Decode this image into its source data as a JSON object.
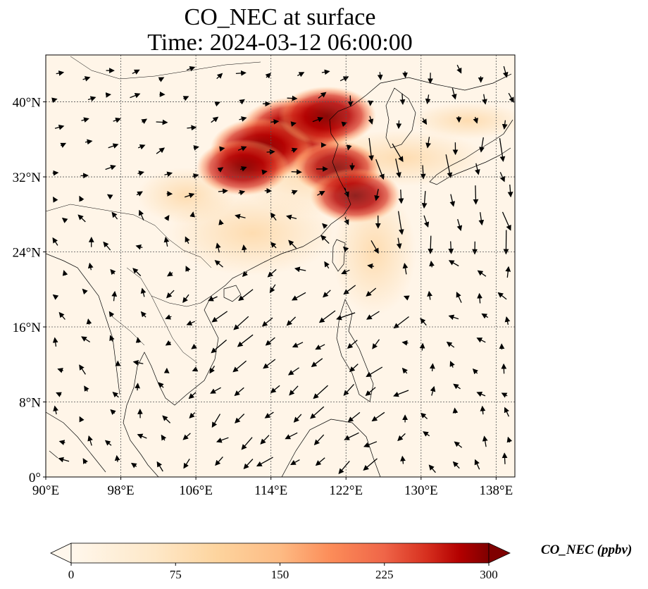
{
  "title": {
    "line1": "CO_NEC at surface",
    "line2": "Time: 2024-03-12 06:00:00"
  },
  "map": {
    "projection": "PlateCarree",
    "lon_range": [
      90,
      140
    ],
    "lat_range": [
      0,
      45
    ],
    "x_ticks": [
      {
        "value": 90,
        "label": "90°E"
      },
      {
        "value": 98,
        "label": "98°E"
      },
      {
        "value": 106,
        "label": "106°E"
      },
      {
        "value": 114,
        "label": "114°E"
      },
      {
        "value": 122,
        "label": "122°E"
      },
      {
        "value": 130,
        "label": "130°E"
      },
      {
        "value": 138,
        "label": "138°E"
      }
    ],
    "y_ticks": [
      {
        "value": 0,
        "label": "0°"
      },
      {
        "value": 8,
        "label": "8°N"
      },
      {
        "value": 16,
        "label": "16°N"
      },
      {
        "value": 24,
        "label": "24°N"
      },
      {
        "value": 32,
        "label": "32°N"
      },
      {
        "value": 40,
        "label": "40°N"
      }
    ],
    "gridlines": "dotted",
    "field": "CO_NEC concentration with surface wind vectors",
    "plume_regions": [
      {
        "lon": 116.5,
        "lat": 37.0,
        "level": 290
      },
      {
        "lon": 113.0,
        "lat": 35.0,
        "level": 260
      },
      {
        "lon": 120.0,
        "lat": 38.5,
        "level": 240
      },
      {
        "lon": 121.0,
        "lat": 33.0,
        "level": 200
      },
      {
        "lon": 123.0,
        "lat": 30.0,
        "level": 210
      },
      {
        "lon": 111.0,
        "lat": 33.0,
        "level": 220
      }
    ]
  },
  "colorbar": {
    "label": "CO_NEC (ppbv)",
    "min": 0,
    "max": 300,
    "ticks": [
      "0",
      "75",
      "150",
      "225",
      "300"
    ],
    "colormap": "OrRd",
    "extend": "both"
  },
  "colors": {
    "low": "#fff7ec",
    "mid": "#fdbb84",
    "high": "#7f0000"
  }
}
